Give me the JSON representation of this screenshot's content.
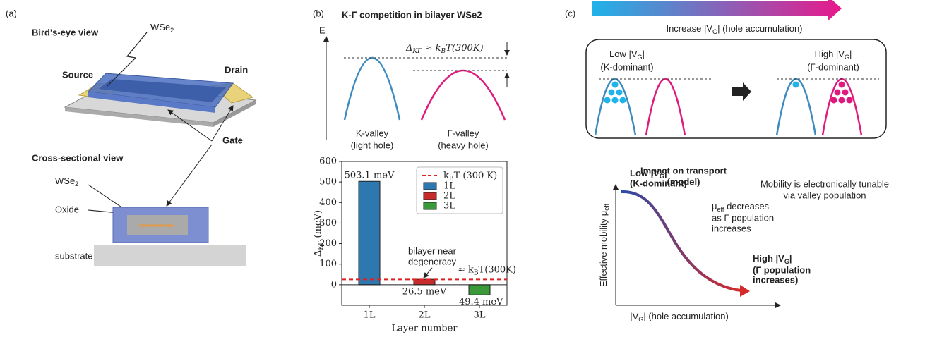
{
  "panel_a": {
    "label": "(a)",
    "birds_eye_title": "Bird's-eye view",
    "wse2_top": [
      "WSe",
      "2"
    ],
    "source": "Source",
    "drain": "Drain",
    "gate": "Gate",
    "cross_title": "Cross-sectional view",
    "wse2_cross": [
      "WSe",
      "2"
    ],
    "oxide": "Oxide",
    "substrate": "substrate"
  },
  "panel_b": {
    "label": "(b)",
    "title": "K-Γ competition in bilayer WSe2",
    "energy_axis": "E",
    "delta": [
      "Δ",
      "KΓ",
      " ≈ k",
      "B",
      "T(300K)"
    ],
    "k_valley": "K-valley",
    "k_valley_sub": "(light hole)",
    "g_valley": "Γ-valley",
    "g_valley_sub": "(heavy hole)"
  },
  "chart_data": {
    "type": "bar",
    "categories": [
      "1L",
      "2L",
      "3L"
    ],
    "values": [
      503.1,
      26.5,
      -49.4
    ],
    "value_labels": [
      "503.1 meV",
      "26.5 meV",
      "-49.4 meV"
    ],
    "colors": [
      "#2e78b0",
      "#c62c2c",
      "#3a9a3a"
    ],
    "ylim": [
      -100,
      600
    ],
    "yticks": [
      0,
      100,
      200,
      300,
      400,
      500,
      600
    ],
    "xlabel": "Layer number",
    "ylabel": [
      "Δ",
      "KΓ",
      " (meV)"
    ],
    "reference_line": {
      "value": 25.85,
      "color": "#e02020",
      "label": [
        "k",
        "B",
        "T (300 K)"
      ]
    },
    "reference_annotation": [
      "≈ k",
      "B",
      "T(300K)"
    ],
    "annotation": [
      "bilayer near",
      "degeneracy"
    ],
    "legend_loc": "upper right"
  },
  "panel_c": {
    "label": "(c)",
    "arrow_text": [
      "Increase |V",
      "G",
      "| (hole accumulation)"
    ],
    "low_vg": [
      "Low |V",
      "G",
      "|"
    ],
    "k_dominant": "(K-dominant)",
    "high_vg": [
      "High |V",
      "G",
      "|"
    ],
    "g_dominant": "(Γ-dominant)",
    "transport_title": "Impact on transport",
    "transport_sub": "(model)",
    "y_label": [
      "Effective mobility μ",
      "eff"
    ],
    "x_label": [
      "|V",
      "G",
      "| (hole accumulation)"
    ],
    "curve_low": [
      "Low |V",
      "G",
      "|"
    ],
    "curve_low_sub": "(K-dominant)",
    "tunable_1": "Mobility is electronically tunable",
    "tunable_2": "via valley population",
    "decrease_1": [
      "μ",
      "eff",
      " decreases"
    ],
    "decrease_2": "as Γ population",
    "decrease_3": "increases",
    "curve_high": [
      "High |V",
      "G",
      "|"
    ],
    "curve_high_2": "(Γ population",
    "curve_high_3": "increases)"
  }
}
